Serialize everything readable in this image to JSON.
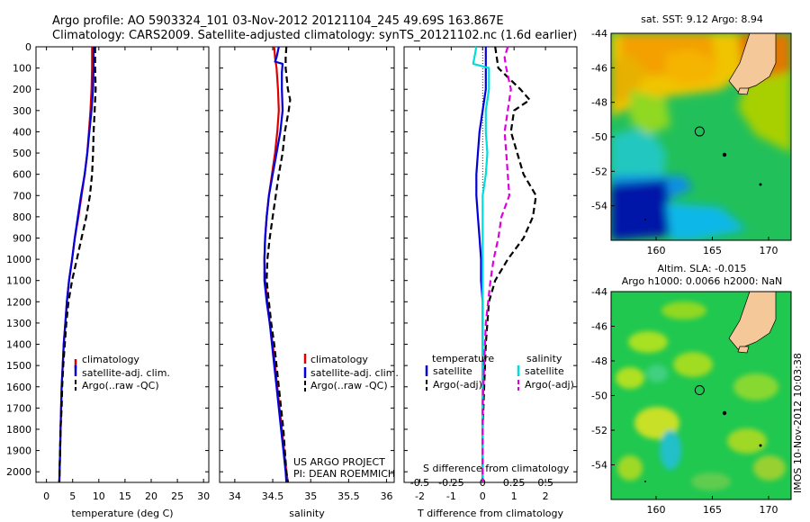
{
  "header": {
    "line1": "Argo profile: AO 5903324_101 03-Nov-2012 20121104_245 49.69S 163.867E",
    "line2": "Climatology: CARS2009. Satellite-adjusted climatology: synTS_20121102.nc (1.6d earlier)"
  },
  "colors": {
    "climatology": "#dd0000",
    "satellite": "#0000dd",
    "argo": "#000000",
    "satellite_salinity": "#00dddd",
    "argo_salinity": "#dd00dd",
    "land": "#f5c89a"
  },
  "credits": {
    "project": "US ARGO PROJECT",
    "pi": "PI: DEAN ROEMMICH"
  },
  "timestamp": "IMOS 10-Nov-2012 10:03:38",
  "chart_data": [
    {
      "type": "line",
      "id": "temperature",
      "xlabel": "temperature (deg C)",
      "xlim": [
        -2,
        31
      ],
      "xticks": [
        0,
        5,
        10,
        15,
        20,
        25,
        30
      ],
      "ylim": [
        0,
        2050
      ],
      "yticks": [
        0,
        100,
        200,
        300,
        400,
        500,
        600,
        700,
        800,
        900,
        1000,
        1100,
        1200,
        1300,
        1400,
        1500,
        1600,
        1700,
        1800,
        1900,
        2000
      ],
      "legend": [
        "climatology",
        "satellite-adj. clim.",
        "Argo(..raw -QC)"
      ],
      "series": [
        {
          "name": "climatology",
          "style": "solid",
          "color": "#dd0000",
          "points": [
            [
              8.7,
              0
            ],
            [
              8.7,
              100
            ],
            [
              8.6,
              200
            ],
            [
              8.4,
              300
            ],
            [
              8.1,
              400
            ],
            [
              7.8,
              500
            ],
            [
              7.3,
              600
            ],
            [
              6.7,
              700
            ],
            [
              6.1,
              800
            ],
            [
              5.4,
              900
            ],
            [
              4.9,
              1000
            ],
            [
              4.3,
              1100
            ],
            [
              3.9,
              1200
            ],
            [
              3.6,
              1300
            ],
            [
              3.3,
              1400
            ],
            [
              3.1,
              1500
            ],
            [
              2.9,
              1600
            ],
            [
              2.8,
              1700
            ],
            [
              2.7,
              1800
            ],
            [
              2.6,
              1900
            ],
            [
              2.5,
              2000
            ],
            [
              2.45,
              2050
            ]
          ]
        },
        {
          "name": "satellite-adj. clim.",
          "style": "solid",
          "color": "#0000dd",
          "points": [
            [
              9.0,
              0
            ],
            [
              9.0,
              100
            ],
            [
              8.9,
              200
            ],
            [
              8.6,
              300
            ],
            [
              8.2,
              400
            ],
            [
              7.8,
              500
            ],
            [
              7.3,
              600
            ],
            [
              6.6,
              700
            ],
            [
              6.0,
              800
            ],
            [
              5.4,
              900
            ],
            [
              4.9,
              1000
            ],
            [
              4.3,
              1100
            ],
            [
              3.9,
              1200
            ],
            [
              3.6,
              1300
            ],
            [
              3.3,
              1400
            ],
            [
              3.1,
              1500
            ],
            [
              2.9,
              1600
            ],
            [
              2.8,
              1700
            ],
            [
              2.7,
              1800
            ],
            [
              2.6,
              1900
            ],
            [
              2.5,
              2000
            ],
            [
              2.45,
              2050
            ]
          ]
        },
        {
          "name": "Argo(..raw -QC)",
          "style": "dashed",
          "color": "#000000",
          "points": [
            [
              9.3,
              0
            ],
            [
              9.3,
              100
            ],
            [
              9.4,
              200
            ],
            [
              9.3,
              250
            ],
            [
              9.2,
              300
            ],
            [
              9.0,
              400
            ],
            [
              8.9,
              500
            ],
            [
              8.7,
              600
            ],
            [
              8.3,
              700
            ],
            [
              7.6,
              800
            ],
            [
              6.7,
              900
            ],
            [
              5.8,
              1000
            ],
            [
              4.9,
              1100
            ],
            [
              4.2,
              1200
            ],
            [
              3.8,
              1300
            ],
            [
              3.5,
              1400
            ],
            [
              3.2,
              1500
            ],
            [
              3.0,
              1600
            ],
            [
              2.9,
              1700
            ],
            [
              2.7,
              1800
            ],
            [
              2.6,
              1900
            ],
            [
              2.5,
              2000
            ],
            [
              2.45,
              2050
            ]
          ]
        }
      ]
    },
    {
      "type": "line",
      "id": "salinity",
      "xlabel": "salinity",
      "xlim": [
        33.8,
        36.1
      ],
      "xticks": [
        34,
        34.5,
        35,
        35.5,
        36
      ],
      "ylim": [
        0,
        2050
      ],
      "legend": [
        "climatology",
        "satellite-adj. clim.",
        "Argo(..raw -QC)"
      ],
      "series": [
        {
          "name": "climatology",
          "style": "solid",
          "color": "#dd0000",
          "points": [
            [
              34.52,
              0
            ],
            [
              34.53,
              50
            ],
            [
              34.55,
              100
            ],
            [
              34.57,
              200
            ],
            [
              34.58,
              300
            ],
            [
              34.56,
              400
            ],
            [
              34.53,
              500
            ],
            [
              34.49,
              600
            ],
            [
              34.45,
              700
            ],
            [
              34.42,
              800
            ],
            [
              34.4,
              900
            ],
            [
              34.39,
              1000
            ],
            [
              34.4,
              1100
            ],
            [
              34.43,
              1200
            ],
            [
              34.46,
              1300
            ],
            [
              34.5,
              1400
            ],
            [
              34.53,
              1500
            ],
            [
              34.56,
              1600
            ],
            [
              34.59,
              1700
            ],
            [
              34.62,
              1800
            ],
            [
              34.65,
              1900
            ],
            [
              34.68,
              2000
            ],
            [
              34.7,
              2050
            ]
          ]
        },
        {
          "name": "satellite-adj. clim.",
          "style": "solid",
          "color": "#0000dd",
          "points": [
            [
              34.58,
              0
            ],
            [
              34.55,
              50
            ],
            [
              34.53,
              70
            ],
            [
              34.63,
              80
            ],
            [
              34.62,
              120
            ],
            [
              34.62,
              200
            ],
            [
              34.63,
              300
            ],
            [
              34.6,
              400
            ],
            [
              34.55,
              500
            ],
            [
              34.5,
              600
            ],
            [
              34.45,
              700
            ],
            [
              34.42,
              800
            ],
            [
              34.4,
              900
            ],
            [
              34.39,
              1000
            ],
            [
              34.39,
              1100
            ],
            [
              34.42,
              1200
            ],
            [
              34.46,
              1300
            ],
            [
              34.49,
              1400
            ],
            [
              34.52,
              1500
            ],
            [
              34.55,
              1600
            ],
            [
              34.58,
              1700
            ],
            [
              34.61,
              1800
            ],
            [
              34.64,
              1900
            ],
            [
              34.67,
              2000
            ],
            [
              34.68,
              2050
            ]
          ]
        },
        {
          "name": "Argo(..raw -QC)",
          "style": "dashed",
          "color": "#000000",
          "points": [
            [
              34.68,
              0
            ],
            [
              34.67,
              50
            ],
            [
              34.67,
              100
            ],
            [
              34.7,
              200
            ],
            [
              34.73,
              250
            ],
            [
              34.71,
              300
            ],
            [
              34.66,
              400
            ],
            [
              34.63,
              500
            ],
            [
              34.58,
              600
            ],
            [
              34.54,
              700
            ],
            [
              34.5,
              800
            ],
            [
              34.46,
              900
            ],
            [
              34.43,
              1000
            ],
            [
              34.42,
              1100
            ],
            [
              34.45,
              1200
            ],
            [
              34.48,
              1300
            ],
            [
              34.52,
              1400
            ],
            [
              34.55,
              1500
            ],
            [
              34.58,
              1600
            ],
            [
              34.61,
              1700
            ],
            [
              34.64,
              1800
            ],
            [
              34.66,
              1900
            ],
            [
              34.68,
              2000
            ],
            [
              34.7,
              2050
            ]
          ]
        }
      ]
    },
    {
      "type": "line",
      "id": "difference",
      "xlabel": "T difference from climatology",
      "xlim": [
        -2.5,
        3
      ],
      "xticks": [
        -2,
        -1,
        0,
        1,
        2
      ],
      "xlabel_top": "S difference from climatology",
      "xticks_top": [
        "-0.5",
        "-0.25",
        "0",
        "0.25",
        "0.5"
      ],
      "ylim": [
        0,
        2050
      ],
      "zero_line": "dotted",
      "legend_temperature_title": "temperature",
      "legend_salinity_title": "salinity",
      "legend_temperature": [
        "satellite",
        "Argo(-adj)"
      ],
      "legend_salinity": [
        "satellite",
        "Argo(-adj)"
      ],
      "series": [
        {
          "name": "temperature satellite",
          "style": "solid",
          "color": "#0000dd",
          "points": [
            [
              0.1,
              0
            ],
            [
              0.1,
              100
            ],
            [
              0.1,
              200
            ],
            [
              0.0,
              300
            ],
            [
              -0.1,
              400
            ],
            [
              -0.15,
              500
            ],
            [
              -0.2,
              600
            ],
            [
              -0.2,
              700
            ],
            [
              -0.15,
              800
            ],
            [
              -0.1,
              900
            ],
            [
              -0.05,
              1000
            ],
            [
              -0.05,
              1100
            ],
            [
              0.0,
              1200
            ],
            [
              0.0,
              1500
            ],
            [
              0.0,
              2050
            ]
          ]
        },
        {
          "name": "temperature Argo(-adj)",
          "style": "dashed",
          "color": "#000000",
          "points": [
            [
              0.4,
              0
            ],
            [
              0.5,
              100
            ],
            [
              1.2,
              200
            ],
            [
              1.5,
              250
            ],
            [
              1.0,
              300
            ],
            [
              0.9,
              400
            ],
            [
              1.1,
              500
            ],
            [
              1.3,
              600
            ],
            [
              1.7,
              700
            ],
            [
              1.6,
              800
            ],
            [
              1.3,
              900
            ],
            [
              0.8,
              1000
            ],
            [
              0.4,
              1100
            ],
            [
              0.2,
              1200
            ],
            [
              0.15,
              1300
            ],
            [
              0.1,
              1400
            ],
            [
              0.05,
              1600
            ],
            [
              0.0,
              1800
            ],
            [
              0.0,
              2050
            ]
          ]
        },
        {
          "name": "salinity satellite",
          "style": "solid",
          "color": "#00dddd",
          "points": [
            [
              -0.2,
              0
            ],
            [
              -0.3,
              80
            ],
            [
              0.2,
              100
            ],
            [
              0.2,
              200
            ],
            [
              0.1,
              300
            ],
            [
              0.1,
              400
            ],
            [
              0.15,
              500
            ],
            [
              0.1,
              600
            ],
            [
              0.0,
              700
            ],
            [
              0.0,
              900
            ],
            [
              0.0,
              1100
            ],
            [
              0.0,
              2050
            ]
          ]
        },
        {
          "name": "salinity Argo(-adj)",
          "style": "dashed",
          "color": "#dd00dd",
          "points": [
            [
              0.8,
              0
            ],
            [
              0.7,
              50
            ],
            [
              0.75,
              100
            ],
            [
              0.9,
              200
            ],
            [
              0.8,
              300
            ],
            [
              0.7,
              400
            ],
            [
              0.75,
              500
            ],
            [
              0.8,
              600
            ],
            [
              0.85,
              700
            ],
            [
              0.6,
              800
            ],
            [
              0.5,
              900
            ],
            [
              0.35,
              1000
            ],
            [
              0.25,
              1100
            ],
            [
              0.1,
              1300
            ],
            [
              0.05,
              1500
            ],
            [
              0.0,
              1700
            ],
            [
              0.0,
              2050
            ]
          ]
        }
      ]
    },
    {
      "type": "heatmap",
      "id": "sst-map",
      "title": "sat. SST: 9.12 Argo: 8.94",
      "xlim": [
        156,
        172
      ],
      "ylim": [
        -56,
        -44
      ],
      "xticks": [
        160,
        165,
        170
      ],
      "yticks": [
        -44,
        -46,
        -48,
        -50,
        -52,
        -54
      ],
      "argo_location": [
        163.867,
        -49.69
      ]
    },
    {
      "type": "heatmap",
      "id": "sla-map",
      "title": "Altim. SLA: -0.015",
      "subtitle": "Argo h1000: 0.0066 h2000: NaN",
      "xlim": [
        156,
        172
      ],
      "ylim": [
        -56,
        -44
      ],
      "xticks": [
        160,
        165,
        170
      ],
      "yticks": [
        -44,
        -46,
        -48,
        -50,
        -52,
        -54
      ],
      "argo_location": [
        163.867,
        -49.69
      ]
    }
  ]
}
